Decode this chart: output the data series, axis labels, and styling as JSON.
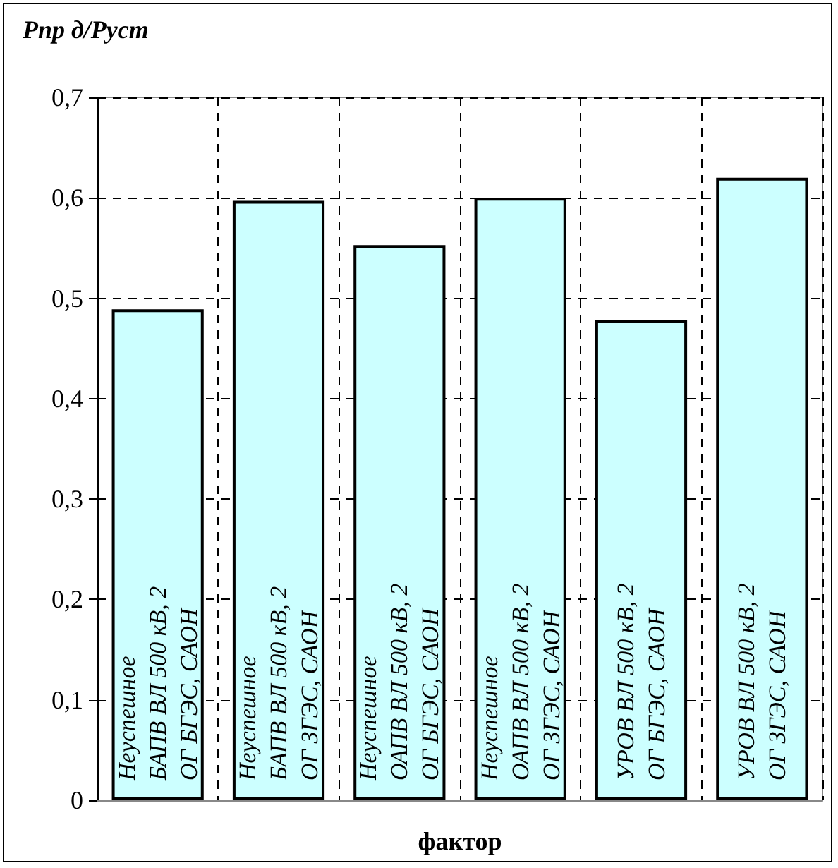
{
  "chart_data": {
    "type": "bar",
    "title": "Рпр д/Руст",
    "xlabel": "фактор",
    "categories": [
      "Неуспешное БАПВ ВЛ 500 кВ, 2 ОГ БГЭС, САОН",
      "Неуспешное БАПВ ВЛ 500 кВ, 2 ОГ ЗГЭС, САОН",
      "Неуспешное ОАПВ ВЛ 500 кВ, 2 ОГ БГЭС, САОН",
      "Неуспешное ОАПВ ВЛ 500 кВ, 2 ОГ ЗГЭС, САОН",
      "УРОВ ВЛ 500 кВ, 2 ОГ БГЭС, САОН",
      "УРОВ ВЛ 500 кВ, 2 ОГ ЗГЭС, САОН"
    ],
    "values": [
      0.489,
      0.597,
      0.553,
      0.6,
      0.478,
      0.62
    ],
    "color": "#ccffff",
    "ylim": [
      0,
      0.7
    ],
    "yticks": [
      0,
      {
        "value": 0.1,
        "label": "0,1"
      },
      {
        "value": 0.2,
        "label": "0,2"
      },
      {
        "value": 0.3,
        "label": "0,3"
      },
      {
        "value": 0.4,
        "label": "0,4"
      },
      {
        "value": 0.5,
        "label": "0,5"
      },
      {
        "value": 0.6,
        "label": "0,6"
      },
      {
        "value": 0.7,
        "label": "0,7"
      }
    ],
    "grid": true
  }
}
